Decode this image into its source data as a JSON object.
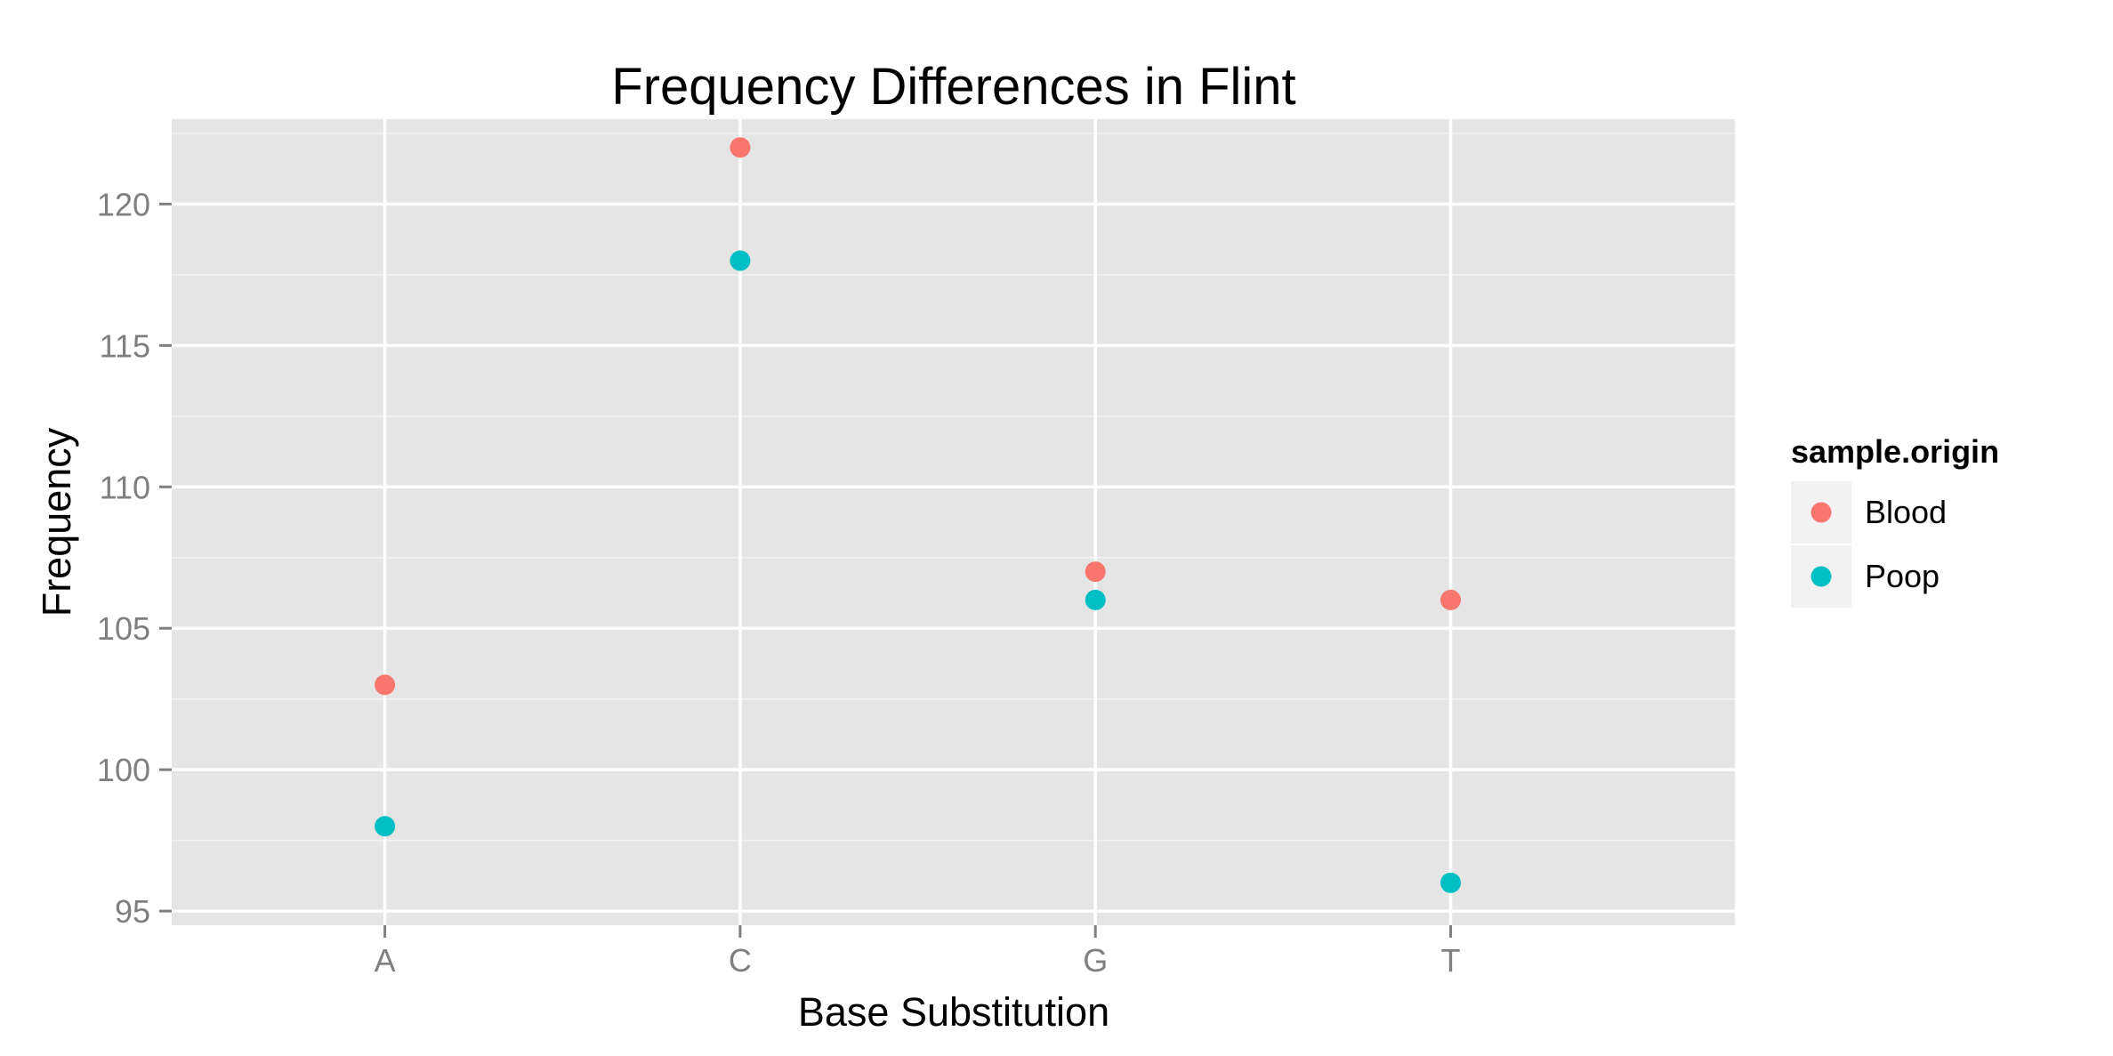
{
  "chart_data": {
    "type": "scatter",
    "title": "Frequency Differences in Flint",
    "xlabel": "Base Substitution",
    "ylabel": "Frequency",
    "categories": [
      "A",
      "C",
      "G",
      "T"
    ],
    "ylim": [
      94.5,
      123
    ],
    "yticks": [
      "95",
      "100",
      "105",
      "110",
      "115",
      "120"
    ],
    "grid": true,
    "legend": {
      "title": "sample.origin",
      "placement": "right"
    },
    "series": [
      {
        "name": "Blood",
        "color": "#F8766D",
        "values": [
          103,
          122,
          107,
          106
        ]
      },
      {
        "name": "Poop",
        "color": "#00BFC4",
        "values": [
          98,
          118,
          106,
          96
        ]
      }
    ]
  }
}
